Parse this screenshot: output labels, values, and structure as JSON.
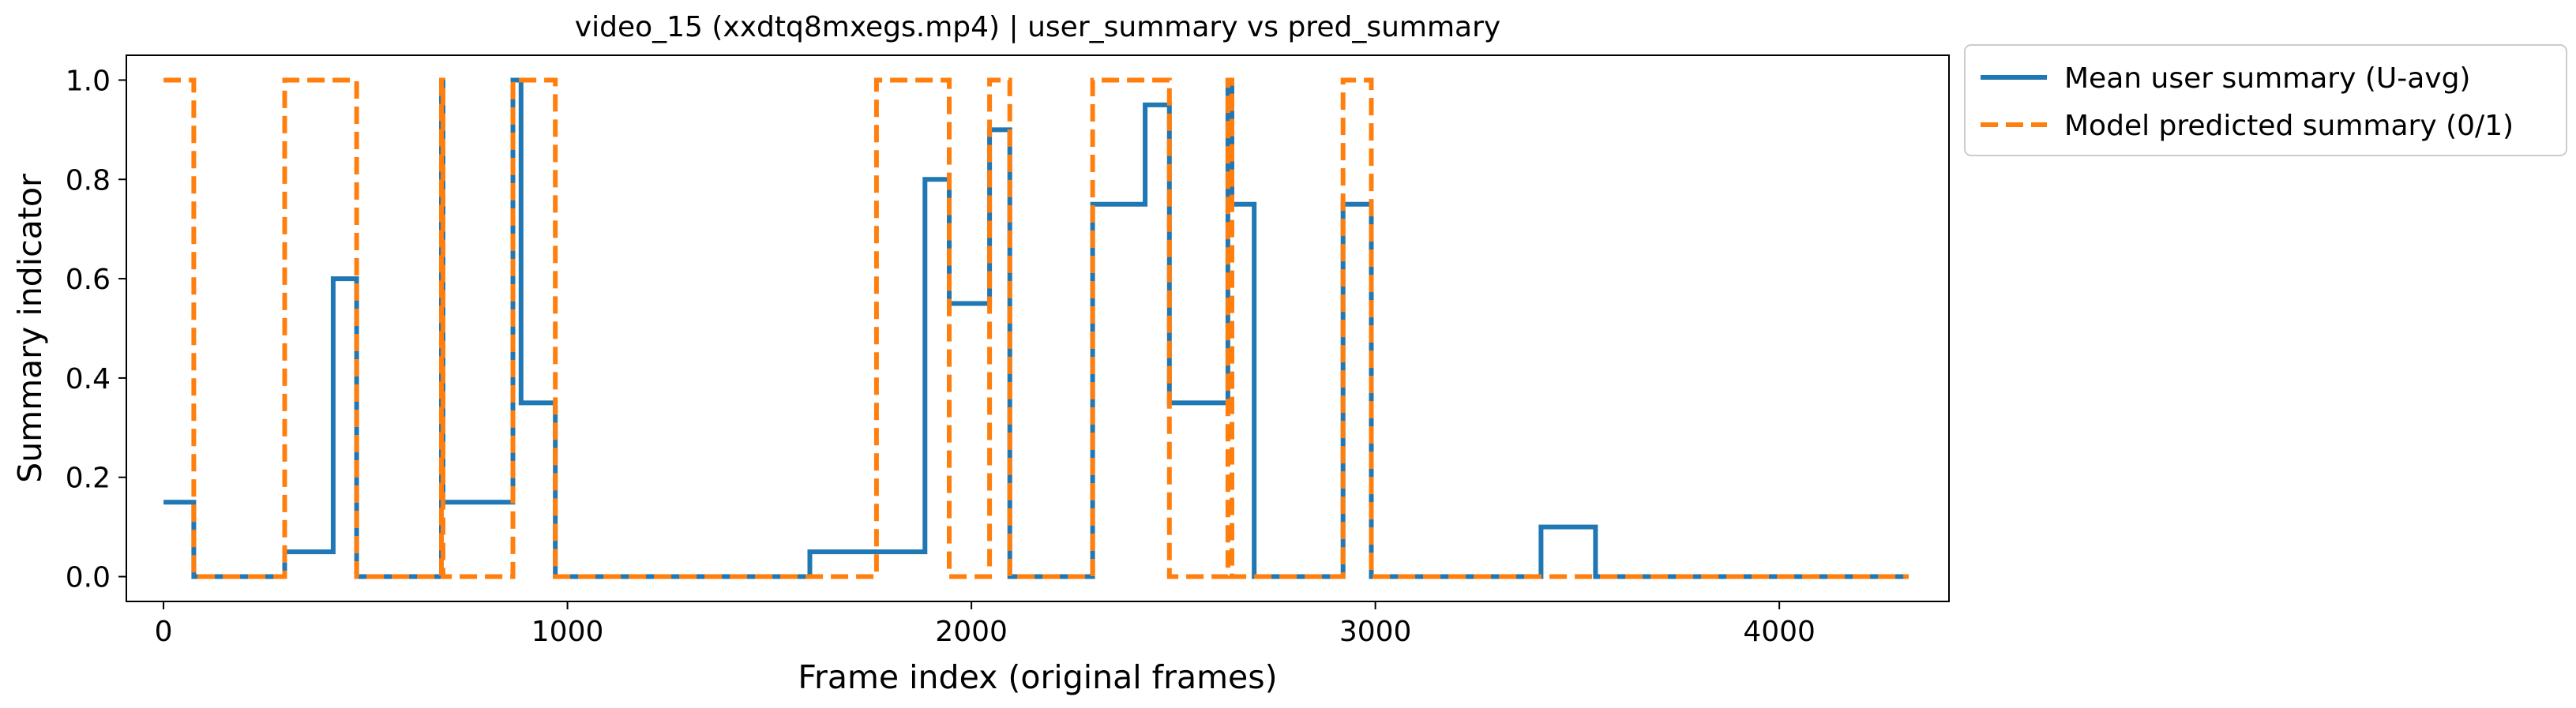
{
  "chart_data": {
    "type": "line",
    "title": "video_15 (xxdtq8mxegs.mp4) | user_summary vs pred_summary",
    "xlabel": "Frame index (original frames)",
    "ylabel": "Summary indicator",
    "xlim": [
      -92,
      4420
    ],
    "ylim": [
      -0.05,
      1.05
    ],
    "xticks": [
      0,
      1000,
      2000,
      3000,
      4000
    ],
    "yticks": [
      0.0,
      0.2,
      0.4,
      0.6,
      0.8,
      1.0
    ],
    "grid": false,
    "legend_position": "outside-upper-right",
    "series": [
      {
        "name": "Mean user summary (U-avg)",
        "color": "#1f77b4",
        "style": "solid",
        "step": true,
        "points": [
          [
            0,
            0.15
          ],
          [
            75,
            0.15
          ],
          [
            75,
            0.0
          ],
          [
            300,
            0.0
          ],
          [
            300,
            0.05
          ],
          [
            420,
            0.05
          ],
          [
            420,
            0.6
          ],
          [
            478,
            0.6
          ],
          [
            478,
            0.0
          ],
          [
            688,
            0.0
          ],
          [
            688,
            1.0
          ],
          [
            692,
            1.0
          ],
          [
            692,
            0.15
          ],
          [
            865,
            0.15
          ],
          [
            865,
            1.0
          ],
          [
            885,
            1.0
          ],
          [
            885,
            0.35
          ],
          [
            970,
            0.35
          ],
          [
            970,
            0.0
          ],
          [
            1600,
            0.0
          ],
          [
            1600,
            0.05
          ],
          [
            1885,
            0.05
          ],
          [
            1885,
            0.8
          ],
          [
            1945,
            0.8
          ],
          [
            1945,
            0.55
          ],
          [
            2045,
            0.55
          ],
          [
            2045,
            0.9
          ],
          [
            2095,
            0.9
          ],
          [
            2095,
            0.0
          ],
          [
            2300,
            0.0
          ],
          [
            2300,
            0.75
          ],
          [
            2430,
            0.75
          ],
          [
            2430,
            0.95
          ],
          [
            2490,
            0.95
          ],
          [
            2490,
            0.35
          ],
          [
            2635,
            0.35
          ],
          [
            2635,
            1.0
          ],
          [
            2645,
            1.0
          ],
          [
            2645,
            0.75
          ],
          [
            2700,
            0.75
          ],
          [
            2700,
            0.0
          ],
          [
            2920,
            0.0
          ],
          [
            2920,
            0.75
          ],
          [
            2990,
            0.75
          ],
          [
            2990,
            0.0
          ],
          [
            3410,
            0.0
          ],
          [
            3410,
            0.1
          ],
          [
            3545,
            0.1
          ],
          [
            3545,
            0.0
          ],
          [
            4320,
            0.0
          ]
        ]
      },
      {
        "name": "Model predicted summary (0/1)",
        "color": "#ff7f0e",
        "style": "dashed",
        "step": true,
        "points": [
          [
            0,
            1.0
          ],
          [
            75,
            1.0
          ],
          [
            75,
            0.0
          ],
          [
            300,
            0.0
          ],
          [
            300,
            1.0
          ],
          [
            478,
            1.0
          ],
          [
            478,
            0.0
          ],
          [
            688,
            0.0
          ],
          [
            688,
            1.0
          ],
          [
            692,
            1.0
          ],
          [
            692,
            0.0
          ],
          [
            865,
            0.0
          ],
          [
            865,
            1.0
          ],
          [
            970,
            1.0
          ],
          [
            970,
            0.0
          ],
          [
            1765,
            0.0
          ],
          [
            1765,
            1.0
          ],
          [
            1945,
            1.0
          ],
          [
            1945,
            0.0
          ],
          [
            2045,
            0.0
          ],
          [
            2045,
            1.0
          ],
          [
            2095,
            1.0
          ],
          [
            2095,
            0.0
          ],
          [
            2300,
            0.0
          ],
          [
            2300,
            1.0
          ],
          [
            2490,
            1.0
          ],
          [
            2490,
            0.0
          ],
          [
            2635,
            0.0
          ],
          [
            2635,
            1.0
          ],
          [
            2645,
            1.0
          ],
          [
            2645,
            0.0
          ],
          [
            2920,
            0.0
          ],
          [
            2920,
            1.0
          ],
          [
            2990,
            1.0
          ],
          [
            2990,
            0.0
          ],
          [
            4320,
            0.0
          ]
        ]
      }
    ]
  }
}
